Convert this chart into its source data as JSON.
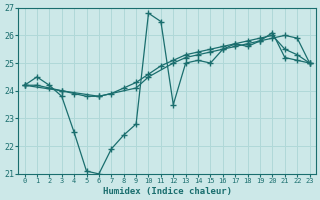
{
  "xlabel": "Humidex (Indice chaleur)",
  "xlim": [
    -0.5,
    23.5
  ],
  "ylim": [
    21,
    27
  ],
  "yticks": [
    21,
    22,
    23,
    24,
    25,
    26,
    27
  ],
  "xticks": [
    0,
    1,
    2,
    3,
    4,
    5,
    6,
    7,
    8,
    9,
    10,
    11,
    12,
    13,
    14,
    15,
    16,
    17,
    18,
    19,
    20,
    21,
    22,
    23
  ],
  "bg_color": "#cce8e8",
  "line_color": "#1a6e6e",
  "grid_color": "#b0d8d8",
  "line1_x": [
    0,
    1,
    2,
    3,
    4,
    5,
    6,
    7,
    8,
    9,
    10,
    11,
    12,
    13,
    14,
    15,
    16,
    17,
    18,
    19,
    20,
    21,
    22,
    23
  ],
  "line1_y": [
    24.2,
    24.5,
    24.2,
    23.8,
    22.5,
    21.1,
    21.0,
    21.9,
    22.4,
    22.8,
    26.8,
    26.5,
    23.5,
    25.0,
    25.1,
    25.0,
    25.5,
    25.7,
    25.6,
    25.8,
    26.1,
    25.2,
    25.1,
    25.0
  ],
  "line2_x": [
    0,
    3,
    6,
    9,
    10,
    12,
    13,
    14,
    15,
    16,
    17,
    18,
    19,
    20,
    21,
    22,
    23
  ],
  "line2_y": [
    24.2,
    24.0,
    23.8,
    24.1,
    24.5,
    25.0,
    25.2,
    25.3,
    25.4,
    25.5,
    25.6,
    25.7,
    25.8,
    25.9,
    26.0,
    25.9,
    25.0
  ],
  "line3_x": [
    0,
    1,
    2,
    3,
    4,
    5,
    6,
    7,
    8,
    9,
    10,
    11,
    12,
    13,
    14,
    15,
    16,
    17,
    18,
    19,
    20,
    21,
    22,
    23
  ],
  "line3_y": [
    24.2,
    24.2,
    24.1,
    24.0,
    23.9,
    23.8,
    23.8,
    23.9,
    24.1,
    24.3,
    24.6,
    24.9,
    25.1,
    25.3,
    25.4,
    25.5,
    25.6,
    25.7,
    25.8,
    25.9,
    26.0,
    25.5,
    25.3,
    25.0
  ]
}
